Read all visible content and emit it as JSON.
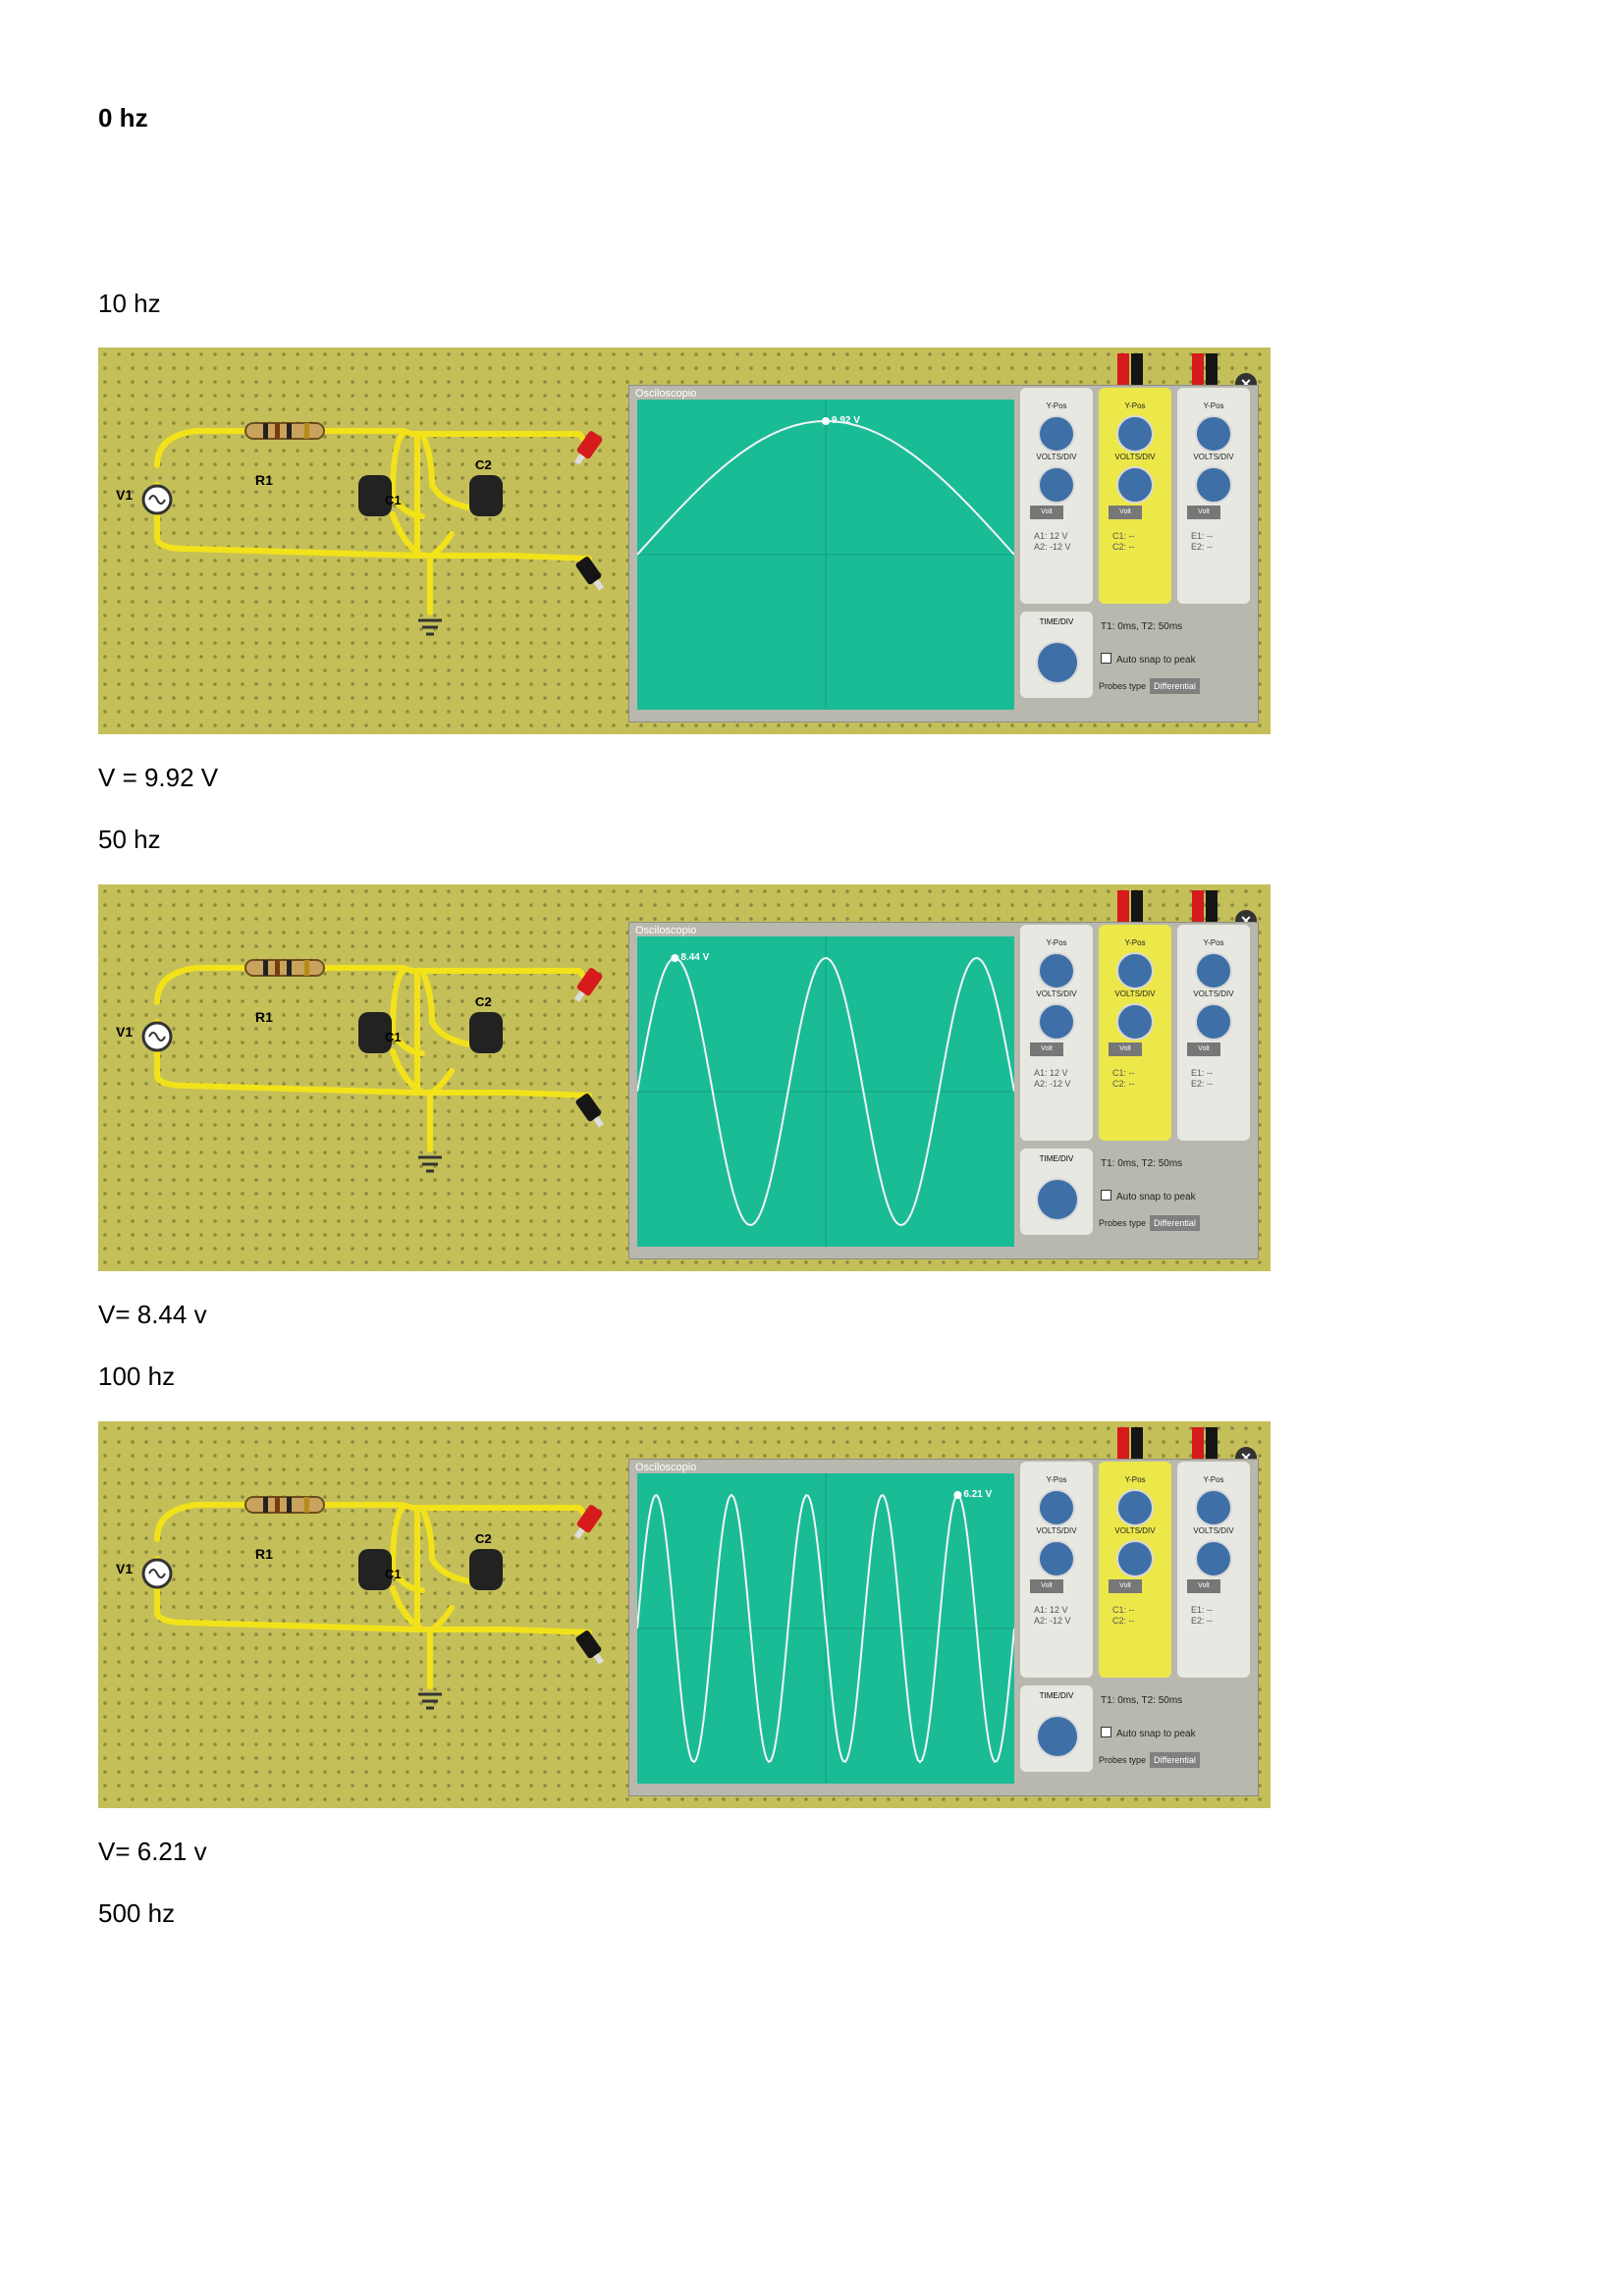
{
  "headings": [
    {
      "text": "0 hz"
    },
    {
      "text": "10 hz"
    },
    {
      "text": "50 hz"
    },
    {
      "text": "100 hz"
    },
    {
      "text": "500 hz"
    }
  ],
  "results": [
    "V = 9.92 V",
    "V= 8.44 v",
    "V= 6.21 v"
  ],
  "simulator": {
    "title": "Osciloscopio",
    "source_label": "V1",
    "resistor_label": "R1",
    "cap1_label": "C1",
    "cap2_label": "C2",
    "channels": [
      {
        "name": "A",
        "vpos": "Y-Pos",
        "volts": "VOLTS/DIV",
        "unit": "Volt",
        "v1": "A1: 12 V",
        "v2": "A2: -12 V"
      },
      {
        "name": "C",
        "vpos": "Y-Pos",
        "volts": "VOLTS/DIV",
        "unit": "Volt",
        "v1": "C1: --",
        "v2": "C2: --"
      },
      {
        "name": "E",
        "vpos": "Y-Pos",
        "volts": "VOLTS/DIV",
        "unit": "Volt",
        "v1": "E1: --",
        "v2": "E2: --"
      }
    ],
    "time_label": "TIME/DIV",
    "cursors": "T1: 0ms, T2: 50ms",
    "snap_label": "Auto snap to peak",
    "probes_label": "Probes type",
    "probes_value": "Differential",
    "close_glyph": "✕"
  },
  "screens": [
    {
      "frequency_hz": 10,
      "peak_label": "9.92 V",
      "cycles_shown": 0.5
    },
    {
      "frequency_hz": 50,
      "peak_label": "8.44 V",
      "cycles_shown": 2.5
    },
    {
      "frequency_hz": 100,
      "peak_label": "6.21 V",
      "cycles_shown": 5
    }
  ],
  "colors": {
    "board": "#c5bf5a",
    "wire": "#f2e21a",
    "screen": "#1abc96",
    "knob": "#3f6fa7"
  }
}
